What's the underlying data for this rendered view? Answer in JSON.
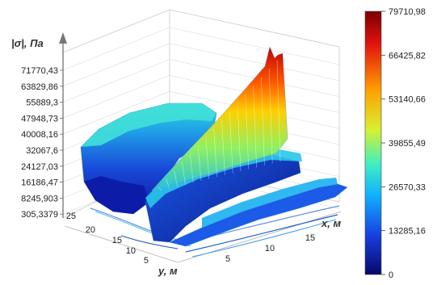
{
  "chart_data": {
    "type": "surface-3d",
    "z_axis_label": "|σ|, Па",
    "x_axis_label": "x, м",
    "y_axis_label": "y, м",
    "z_ticks": [
      "71770,43",
      "63829,86",
      "55889,3",
      "47948,73",
      "40008,16",
      "32067,6",
      "24127,03",
      "16186,47",
      "8245,903",
      "305,3379"
    ],
    "x_ticks": [
      5,
      10,
      15
    ],
    "y_ticks": [
      5,
      10,
      15,
      20,
      25
    ],
    "colorbar": {
      "min": 0,
      "max": 79710.98,
      "ticks": [
        "79710,98",
        "66425,82",
        "53140,66",
        "39855,49",
        "26570,33",
        "13285,16",
        "0"
      ],
      "colors": [
        "#8b0000",
        "#ff2a00",
        "#ffd000",
        "#8cff50",
        "#00e5e5",
        "#1a4dff",
        "#0a0a8c"
      ]
    },
    "grid": true
  }
}
